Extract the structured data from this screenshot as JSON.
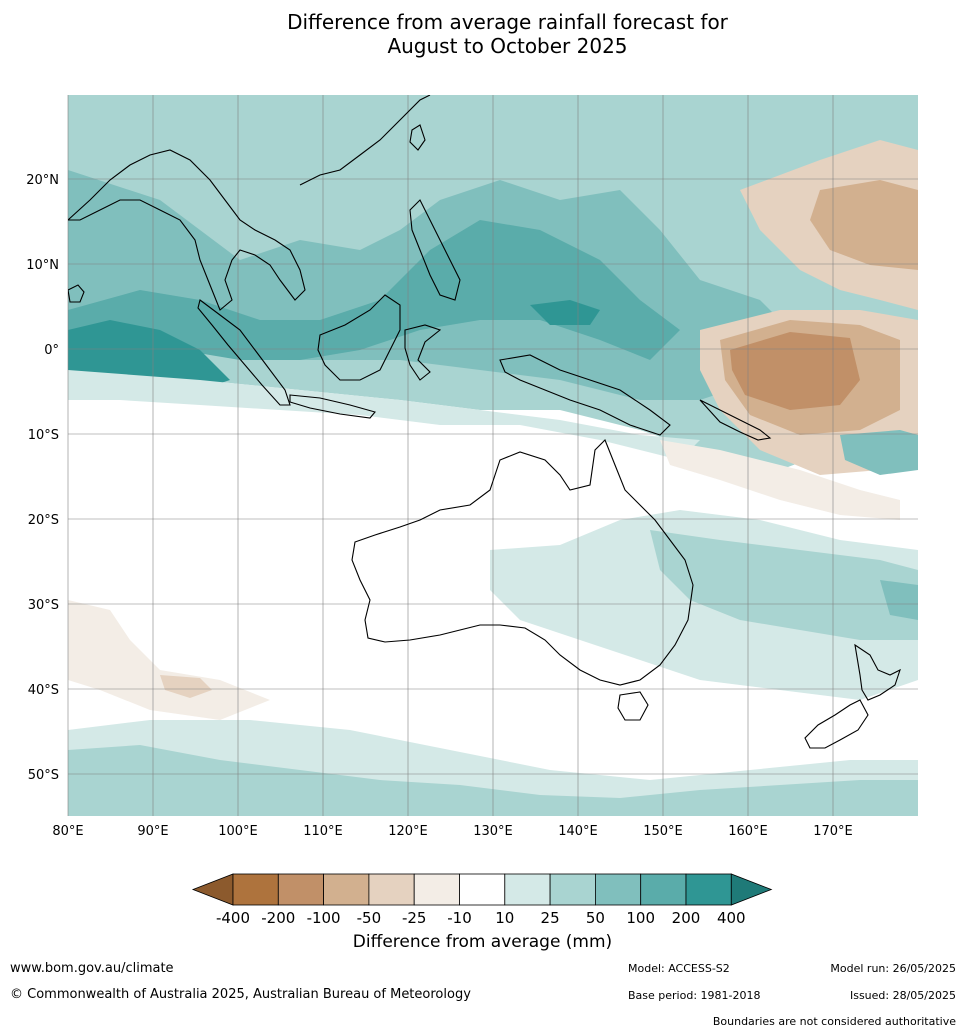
{
  "title": {
    "line1": "Difference from average rainfall forecast for",
    "line2": "August to October 2025"
  },
  "map": {
    "lon_ticks": [
      "80°E",
      "90°E",
      "100°E",
      "110°E",
      "120°E",
      "130°E",
      "140°E",
      "150°E",
      "160°E",
      "170°E"
    ],
    "lat_ticks": [
      "20°N",
      "10°N",
      "0°",
      "10°S",
      "20°S",
      "30°S",
      "40°S",
      "50°S"
    ],
    "lon_range": [
      80,
      180
    ],
    "lat_range": [
      -55,
      30
    ],
    "grid": true
  },
  "colorbar": {
    "title": "Difference from average (mm)",
    "labels": [
      "-400",
      "-200",
      "-100",
      "-50",
      "-25",
      "-10",
      "10",
      "25",
      "50",
      "100",
      "200",
      "400"
    ],
    "colors": [
      "#8c5a2d",
      "#ae733d",
      "#c19068",
      "#d2b08f",
      "#e5d2c0",
      "#f3ede6",
      "#ffffff",
      "#d4e9e7",
      "#a9d4d1",
      "#80bfbd",
      "#5aacaa",
      "#2f9694",
      "#1f7a78"
    ]
  },
  "footer": {
    "url": "www.bom.gov.au/climate",
    "copyright": "© Commonwealth of Australia 2025, Australian Bureau of Meteorology",
    "model": "Model: ACCESS-S2",
    "model_run": "Model run: 26/05/2025",
    "base_period": "Base period: 1981-2018",
    "issued": "Issued: 28/05/2025",
    "disclaimer": "Boundaries are not considered authoritative"
  }
}
